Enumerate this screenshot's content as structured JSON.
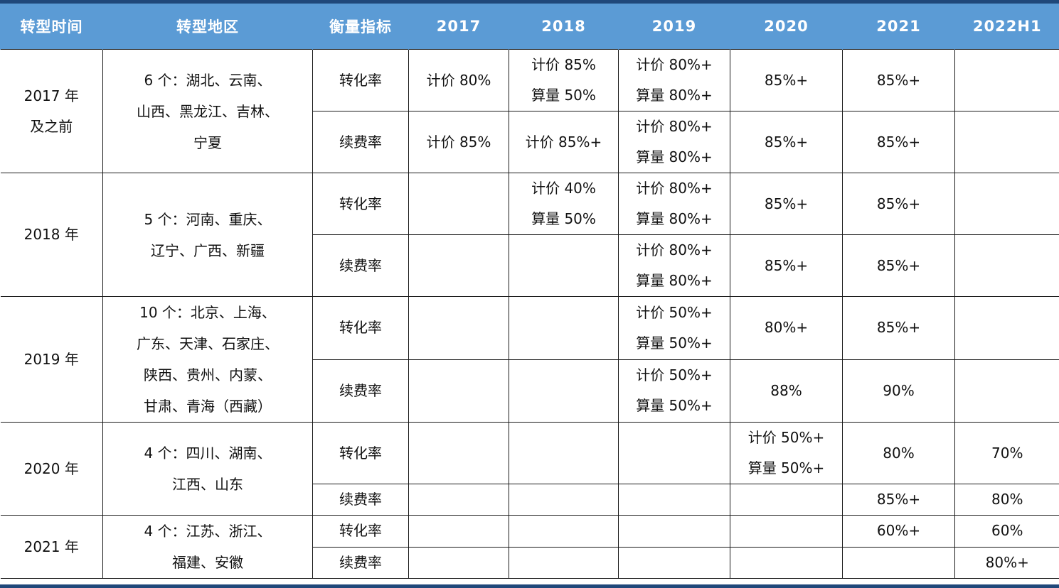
{
  "header": [
    "转型时间",
    "转型地区",
    "衡量指标",
    "2017",
    "2018",
    "2019",
    "2020",
    "2021",
    "2022H1"
  ],
  "rows": [
    {
      "time": "2017 年及之前",
      "region": [
        "6 个：湖北、云南、",
        "山西、黑龙江、吉林、",
        "宁夏"
      ],
      "metrics": [
        {
          "name": "转化率",
          "v2017": [
            "计价 80%"
          ],
          "v2018": [
            "计价 85%",
            "算量 50%"
          ],
          "v2019": [
            "计价 80%+",
            "算量 80%+"
          ],
          "v2020": [
            "85%+"
          ],
          "v2021": [
            "85%+"
          ],
          "v2022": []
        },
        {
          "name": "续费率",
          "v2017": [
            "计价 85%"
          ],
          "v2018": [
            "计价 85%+"
          ],
          "v2019": [
            "计价 80%+",
            "算量 80%+"
          ],
          "v2020": [
            "85%+"
          ],
          "v2021": [
            "85%+"
          ],
          "v2022": []
        }
      ]
    },
    {
      "time": "2018 年",
      "region": [
        "5 个：河南、重庆、",
        "辽宁、广西、新疆"
      ],
      "metrics": [
        {
          "name": "转化率",
          "v2017": [],
          "v2018": [
            "计价 40%",
            "算量 50%"
          ],
          "v2019": [
            "计价 80%+",
            "算量 80%+"
          ],
          "v2020": [
            "85%+"
          ],
          "v2021": [
            "85%+"
          ],
          "v2022": []
        },
        {
          "name": "续费率",
          "v2017": [],
          "v2018": [],
          "v2019": [
            "计价 80%+",
            "算量 80%+"
          ],
          "v2020": [
            "85%+"
          ],
          "v2021": [
            "85%+"
          ],
          "v2022": []
        }
      ]
    },
    {
      "time": "2019 年",
      "region": [
        "10 个：北京、上海、",
        "广东、天津、石家庄、",
        "陕西、贵州、内蒙、",
        "甘肃、青海（西藏）"
      ],
      "metrics": [
        {
          "name": "转化率",
          "v2017": [],
          "v2018": [],
          "v2019": [
            "计价 50%+",
            "算量 50%+"
          ],
          "v2020": [
            "80%+"
          ],
          "v2021": [
            "85%+"
          ],
          "v2022": []
        },
        {
          "name": "续费率",
          "v2017": [],
          "v2018": [],
          "v2019": [
            "计价 50%+",
            "算量 50%+"
          ],
          "v2020": [
            "88%"
          ],
          "v2021": [
            "90%"
          ],
          "v2022": []
        }
      ]
    },
    {
      "time": "2020 年",
      "region": [
        "4 个：四川、湖南、",
        "江西、山东"
      ],
      "metrics": [
        {
          "name": "转化率",
          "v2017": [],
          "v2018": [],
          "v2019": [],
          "v2020": [
            "计价 50%+",
            "算量 50%+"
          ],
          "v2021": [
            "80%"
          ],
          "v2022": [
            "70%"
          ]
        },
        {
          "name": "续费率",
          "v2017": [],
          "v2018": [],
          "v2019": [],
          "v2020": [],
          "v2021": [
            "85%+"
          ],
          "v2022": [
            "80%"
          ]
        }
      ]
    },
    {
      "time": "2021 年",
      "region": [
        "4 个：江苏、浙江、",
        "福建、安徽"
      ],
      "metrics": [
        {
          "name": "转化率",
          "v2017": [],
          "v2018": [],
          "v2019": [],
          "v2020": [],
          "v2021": [
            "60%+"
          ],
          "v2022": [
            "60%"
          ]
        },
        {
          "name": "续费率",
          "v2017": [],
          "v2018": [],
          "v2019": [],
          "v2020": [],
          "v2021": [],
          "v2022": [
            "80%+"
          ]
        }
      ]
    }
  ]
}
